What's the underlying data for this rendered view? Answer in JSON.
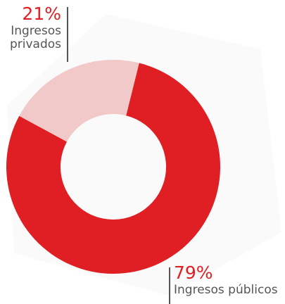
{
  "chart_data": {
    "type": "donut",
    "categories": [
      "Ingresos públicos",
      "Ingresos privados"
    ],
    "values": [
      79,
      21
    ],
    "value_labels": [
      "79%",
      "21%"
    ],
    "colors": [
      "#e01f24",
      "#f2c9c9"
    ]
  }
}
